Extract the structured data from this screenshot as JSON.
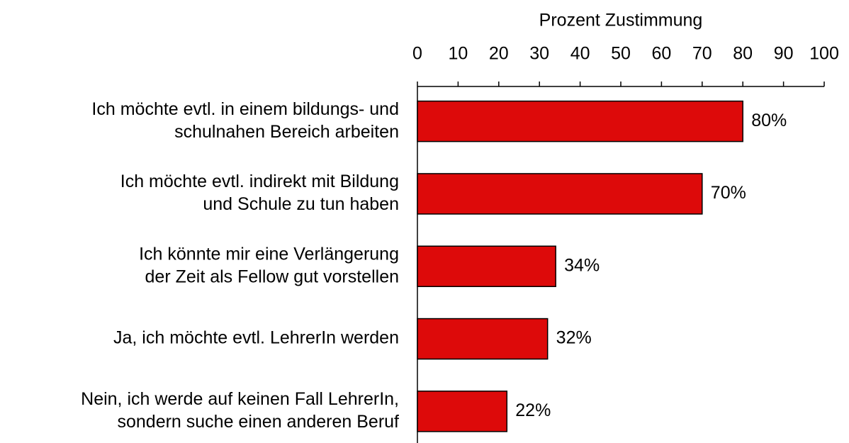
{
  "chart_data": {
    "type": "bar",
    "orientation": "horizontal",
    "x_axis_label": "Prozent Zustimmung",
    "categories": [
      [
        "Ich möchte evtl. in einem bildungs- und",
        "schulnahen Bereich arbeiten"
      ],
      [
        "Ich möchte evtl. indirekt mit Bildung",
        "und Schule zu tun haben"
      ],
      [
        "Ich könnte mir eine Verlängerung",
        "der Zeit als Fellow gut vorstellen"
      ],
      [
        "Ja, ich möchte evtl. LehrerIn werden"
      ],
      [
        "Nein, ich werde auf keinen Fall LehrerIn,",
        "sondern suche einen anderen Beruf"
      ]
    ],
    "values": [
      80,
      70,
      34,
      32,
      22
    ],
    "value_labels": [
      "80%",
      "70%",
      "34%",
      "32%",
      "22%"
    ],
    "color": "#dd0a0a",
    "xlim": [
      0,
      100
    ],
    "xticks": [
      0,
      10,
      20,
      30,
      40,
      50,
      60,
      70,
      80,
      90,
      100
    ]
  }
}
